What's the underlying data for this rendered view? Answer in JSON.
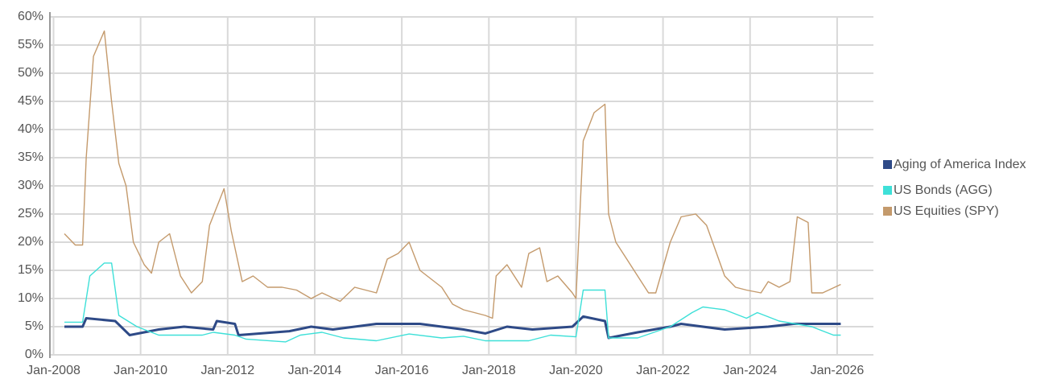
{
  "chart_data": {
    "type": "line",
    "xlim": [
      "2007-12",
      "2026-11"
    ],
    "xticks": [
      {
        "value": "2008-01",
        "label": "Jan-2008"
      },
      {
        "value": "2010-01",
        "label": "Jan-2010"
      },
      {
        "value": "2012-01",
        "label": "Jan-2012"
      },
      {
        "value": "2014-01",
        "label": "Jan-2014"
      },
      {
        "value": "2016-01",
        "label": "Jan-2016"
      },
      {
        "value": "2018-01",
        "label": "Jan-2018"
      },
      {
        "value": "2020-01",
        "label": "Jan-2020"
      },
      {
        "value": "2022-01",
        "label": "Jan-2022"
      },
      {
        "value": "2024-01",
        "label": "Jan-2024"
      },
      {
        "value": "2026-01",
        "label": "Jan-2026"
      }
    ],
    "ylim": [
      0,
      60
    ],
    "yticks": [
      {
        "value": 0,
        "label": "0%"
      },
      {
        "value": 5,
        "label": "5%"
      },
      {
        "value": 10,
        "label": "10%"
      },
      {
        "value": 15,
        "label": "15%"
      },
      {
        "value": 20,
        "label": "20%"
      },
      {
        "value": 25,
        "label": "25%"
      },
      {
        "value": 30,
        "label": "30%"
      },
      {
        "value": 35,
        "label": "35%"
      },
      {
        "value": 40,
        "label": "40%"
      },
      {
        "value": 45,
        "label": "45%"
      },
      {
        "value": 50,
        "label": "50%"
      },
      {
        "value": 55,
        "label": "55%"
      },
      {
        "value": 60,
        "label": "60%"
      }
    ],
    "grid": true,
    "legend": "right",
    "series": [
      {
        "name": "Aging of America Index",
        "color": "#2e4a87",
        "width": 3,
        "x": [
          "2008-04",
          "2008-09",
          "2008-10",
          "2009-06",
          "2009-10",
          "2010-06",
          "2011-01",
          "2011-09",
          "2011-10",
          "2012-03",
          "2012-04",
          "2013-06",
          "2013-12",
          "2014-06",
          "2015-06",
          "2016-06",
          "2017-06",
          "2017-12",
          "2018-06",
          "2019-01",
          "2019-12",
          "2020-03",
          "2020-09",
          "2020-10",
          "2021-06",
          "2022-03",
          "2022-06",
          "2023-06",
          "2024-06",
          "2025-01",
          "2026-02"
        ],
        "values": [
          5,
          5,
          6.5,
          6,
          3.5,
          4.5,
          5,
          4.5,
          6,
          5.5,
          3.5,
          4.2,
          5,
          4.5,
          5.5,
          5.5,
          4.5,
          3.8,
          5,
          4.5,
          5,
          6.8,
          6,
          3,
          4,
          5,
          5.5,
          4.5,
          5,
          5.5,
          5.5
        ]
      },
      {
        "name": "US Bonds (AGG)",
        "color": "#3ee0d8",
        "width": 1.4,
        "x": [
          "2008-04",
          "2008-09",
          "2008-11",
          "2009-03",
          "2009-05",
          "2009-07",
          "2009-12",
          "2010-06",
          "2011-06",
          "2011-09",
          "2012-03",
          "2012-06",
          "2013-05",
          "2013-09",
          "2014-03",
          "2014-09",
          "2015-06",
          "2016-03",
          "2016-12",
          "2017-06",
          "2017-12",
          "2018-12",
          "2019-06",
          "2020-01",
          "2020-03",
          "2020-09",
          "2020-10",
          "2021-06",
          "2022-03",
          "2022-09",
          "2022-12",
          "2023-06",
          "2023-12",
          "2024-03",
          "2024-09",
          "2025-06",
          "2025-12",
          "2026-02"
        ],
        "values": [
          5.8,
          5.8,
          14,
          16.3,
          16.3,
          7,
          5,
          3.5,
          3.5,
          4,
          3.5,
          2.8,
          2.3,
          3.5,
          4,
          3,
          2.5,
          3.7,
          3,
          3.3,
          2.5,
          2.5,
          3.5,
          3.2,
          11.5,
          11.5,
          3,
          3,
          5,
          7.5,
          8.5,
          8,
          6.5,
          7.5,
          6,
          5,
          3.5,
          3.5
        ]
      },
      {
        "name": "US Equities (SPY)",
        "color": "#c49a6c",
        "width": 1.4,
        "x": [
          "2008-04",
          "2008-07",
          "2008-09",
          "2008-10",
          "2008-12",
          "2009-03",
          "2009-05",
          "2009-07",
          "2009-09",
          "2009-11",
          "2010-02",
          "2010-04",
          "2010-06",
          "2010-09",
          "2010-12",
          "2011-03",
          "2011-06",
          "2011-08",
          "2011-12",
          "2012-02",
          "2012-05",
          "2012-08",
          "2012-12",
          "2013-04",
          "2013-08",
          "2013-12",
          "2014-03",
          "2014-08",
          "2014-12",
          "2015-06",
          "2015-09",
          "2015-12",
          "2016-03",
          "2016-06",
          "2016-12",
          "2017-03",
          "2017-06",
          "2017-12",
          "2018-02",
          "2018-03",
          "2018-06",
          "2018-10",
          "2018-12",
          "2019-03",
          "2019-05",
          "2019-08",
          "2019-12",
          "2020-01",
          "2020-03",
          "2020-06",
          "2020-09",
          "2020-10",
          "2020-12",
          "2021-03",
          "2021-06",
          "2021-09",
          "2021-11",
          "2022-03",
          "2022-06",
          "2022-10",
          "2023-01",
          "2023-06",
          "2023-09",
          "2023-12",
          "2024-04",
          "2024-06",
          "2024-09",
          "2024-12",
          "2025-02",
          "2025-05",
          "2025-06",
          "2025-09",
          "2026-02"
        ],
        "values": [
          21.5,
          19.5,
          19.5,
          35,
          53,
          57.5,
          45,
          34,
          30,
          20,
          16,
          14.5,
          20,
          21.5,
          14,
          11,
          13,
          23,
          29.5,
          22,
          13,
          14,
          12,
          12,
          11.5,
          10,
          11,
          9.5,
          12,
          11,
          17,
          18,
          20,
          15,
          12,
          9,
          8,
          7,
          6.5,
          14,
          16,
          12,
          18,
          19,
          13,
          14,
          11,
          10,
          38,
          43,
          44.5,
          25,
          20,
          17,
          14,
          11,
          11,
          20,
          24.5,
          25,
          23,
          14,
          12,
          11.5,
          11,
          13,
          12,
          13,
          24.5,
          23.5,
          11,
          11,
          12.5
        ]
      }
    ]
  }
}
